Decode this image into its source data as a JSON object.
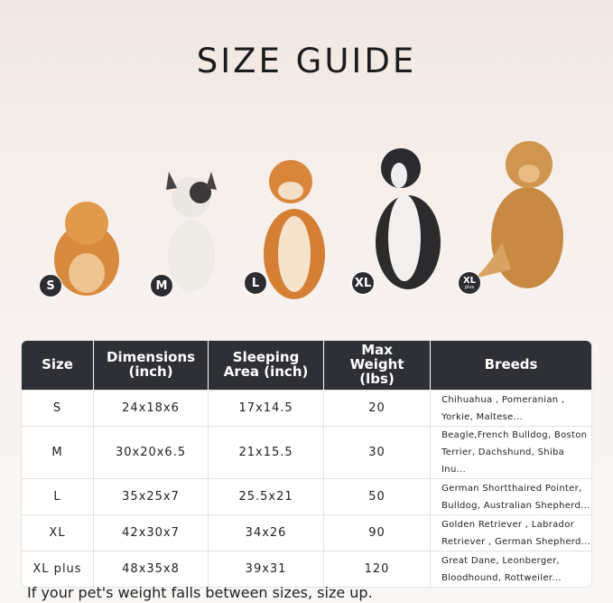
{
  "title": "SIZE GUIDE",
  "sizes": [
    {
      "label": "S"
    },
    {
      "label": "M"
    },
    {
      "label": "L"
    },
    {
      "label": "XL"
    },
    {
      "label": "XL",
      "sub": "plus"
    }
  ],
  "table": {
    "headers": [
      "Size",
      "Dimensions (inch)",
      "Sleeping Area (inch)",
      "Max Weight (lbs)",
      "Breeds"
    ],
    "rows": [
      [
        "S",
        "24x18x6",
        "17x14.5",
        "20",
        "Chihuahua , Pomeranian , Yorkie, Maltese..."
      ],
      [
        "M",
        "30x20x6.5",
        "21x15.5",
        "30",
        "Beagle,French Bulldog, Boston Terrier, Dachshund, Shiba Inu..."
      ],
      [
        "L",
        "35x25x7",
        "25.5x21",
        "50",
        "German Shortthaired Pointer, Bulldog, Australian Shepherd..."
      ],
      [
        "XL",
        "42x30x7",
        "34x26",
        "90",
        "Golden Retriever , Labrador Retriever , German Shepherd..."
      ],
      [
        "XL plus",
        "48x35x8",
        "39x31",
        "120",
        "Great Dane, Leonberger, Bloodhound, Rottweiler..."
      ]
    ]
  },
  "footer": "If your pet's weight falls between sizes, size up.",
  "colors": {
    "header_bg": "#2f3035",
    "badge_bg": "#2c2d31"
  }
}
